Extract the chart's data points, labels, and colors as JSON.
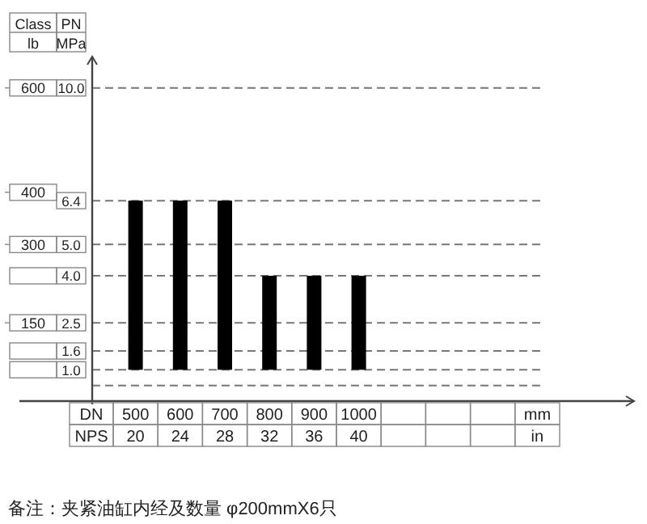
{
  "chart_data": {
    "type": "bar",
    "ylabel": "PN MPa",
    "y2label": "Class lb",
    "categories": [
      "500",
      "600",
      "700",
      "800",
      "900",
      "1000",
      null,
      null,
      null,
      null
    ],
    "values": [
      5.4,
      5.4,
      5.4,
      3.0,
      3.0,
      3.0,
      null,
      null,
      null,
      null
    ],
    "base": [
      1.0,
      1.0,
      1.0,
      1.0,
      1.0,
      1.0,
      null,
      null,
      null,
      null
    ],
    "color": "#000000",
    "ylim": [
      0,
      11
    ],
    "yticks": [
      {
        "value": 0.5,
        "label": null
      },
      "1.0",
      1.6,
      2.5,
      "4.0",
      "5.0",
      6.4,
      "10.0"
    ],
    "grid": "y",
    "line_style": "dashed",
    "y2lim": [
      0,
      660
    ],
    "y2ticks": [
      150,
      300,
      400,
      600
    ],
    "annotations": [
      "DN",
      "NPS",
      "mm",
      "in",
      "20",
      "24",
      "28",
      "32",
      "36",
      "40",
      "备注：夹紧油缸内经及数量 φ200mmX6只"
    ]
  }
}
